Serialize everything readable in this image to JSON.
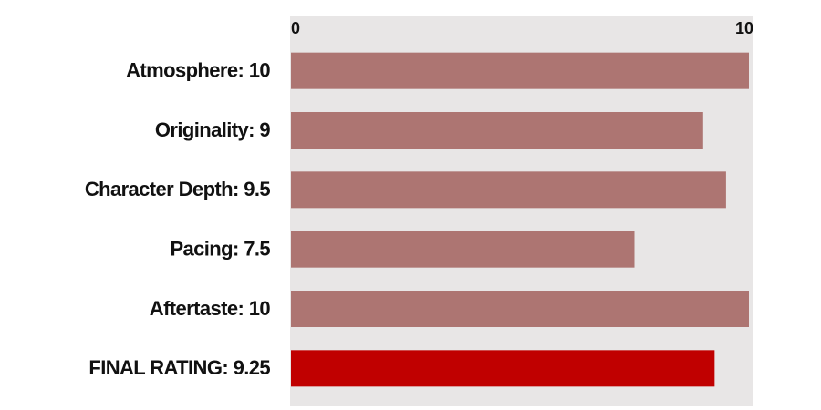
{
  "chart_data": {
    "type": "barh",
    "categories": [
      "Atmosphere: 10",
      "Originality: 9",
      "Character Depth: 9.5",
      "Pacing: 7.5",
      "Aftertaste: 10",
      "FINAL RATING: 9.25"
    ],
    "values": [
      10,
      9,
      9.5,
      7.5,
      10,
      9.25
    ],
    "colors": [
      "#ad7572",
      "#ad7572",
      "#ad7572",
      "#ad7572",
      "#ad7572",
      "#c00000"
    ],
    "xlim": [
      0,
      10
    ],
    "xticks": [
      0,
      10
    ],
    "grid": false
  }
}
